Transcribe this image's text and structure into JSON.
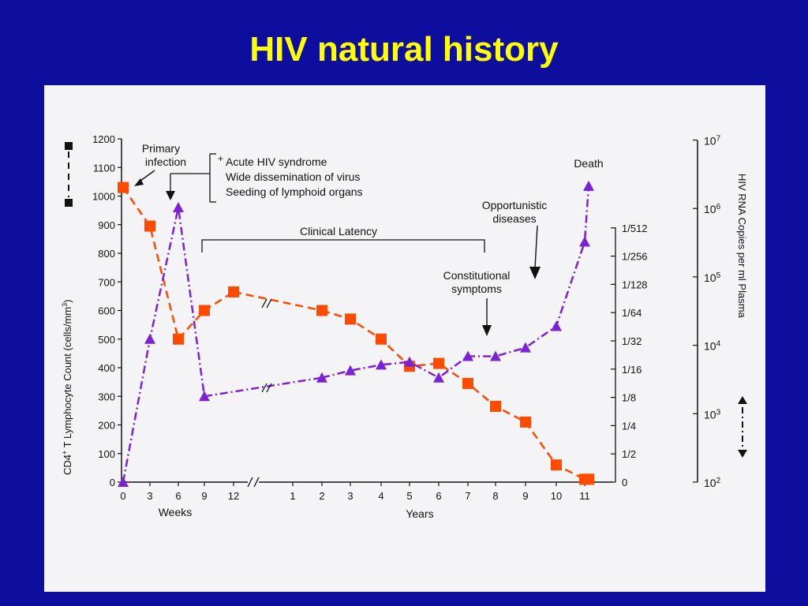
{
  "title": "HIV natural history",
  "chart_data": {
    "type": "line",
    "left_axis": {
      "label_pre": "CD4",
      "label_sup": "+",
      "label_mid": " T Lymphocyte Count (cells/mm",
      "label_sup2": "3",
      "label_post": ")",
      "ticks": [
        0,
        100,
        200,
        300,
        400,
        500,
        600,
        700,
        800,
        900,
        1000,
        1100,
        1200
      ],
      "ylim": [
        0,
        1200
      ]
    },
    "inner_right_axis": {
      "ticks": [
        "0",
        "1/2",
        "1/4",
        "1/8",
        "1/16",
        "1/32",
        "1/64",
        "1/128",
        "1/256",
        "1/512"
      ]
    },
    "outer_right_axis": {
      "label": "HIV RNA Copies per ml Plasma",
      "ticks": [
        {
          "base": "10",
          "exp": "2"
        },
        {
          "base": "10",
          "exp": "3"
        },
        {
          "base": "10",
          "exp": "4"
        },
        {
          "base": "10",
          "exp": "5"
        },
        {
          "base": "10",
          "exp": "6"
        },
        {
          "base": "10",
          "exp": "7"
        }
      ]
    },
    "x_weeks": {
      "label": "Weeks",
      "ticks": [
        "0",
        "3",
        "6",
        "9",
        "12"
      ]
    },
    "x_years": {
      "label": "Years",
      "ticks": [
        "1",
        "2",
        "3",
        "4",
        "5",
        "6",
        "7",
        "8",
        "9",
        "10",
        "11"
      ]
    },
    "series": [
      {
        "legend_marker": "square",
        "color": "#ff4a00",
        "style": "dashed",
        "points": [
          {
            "x": "0w",
            "y": 1030
          },
          {
            "x": "3w",
            "y": 895
          },
          {
            "x": "6w",
            "y": 500
          },
          {
            "x": "9w",
            "y": 600
          },
          {
            "x": "12w",
            "y": 665
          },
          {
            "x": "2y",
            "y": 600
          },
          {
            "x": "3y",
            "y": 570
          },
          {
            "x": "4y",
            "y": 500
          },
          {
            "x": "5y",
            "y": 405
          },
          {
            "x": "6y",
            "y": 415
          },
          {
            "x": "7y",
            "y": 345
          },
          {
            "x": "8y",
            "y": 265
          },
          {
            "x": "9y",
            "y": 210
          },
          {
            "x": "10y",
            "y": 60
          },
          {
            "x": "11y",
            "y": 10
          },
          {
            "x": "12y",
            "y": 10
          }
        ]
      },
      {
        "legend_marker": "triangle",
        "color": "#7b22d4",
        "style": "dash-dot",
        "points": [
          {
            "x": "0w",
            "y": 0
          },
          {
            "x": "3w",
            "y": 500
          },
          {
            "x": "6w",
            "y": 960
          },
          {
            "x": "9w",
            "y": 300
          },
          {
            "x": "2y",
            "y": 365
          },
          {
            "x": "3y",
            "y": 390
          },
          {
            "x": "4y",
            "y": 410
          },
          {
            "x": "5y",
            "y": 420
          },
          {
            "x": "6y",
            "y": 365
          },
          {
            "x": "7y",
            "y": 440
          },
          {
            "x": "8y",
            "y": 440
          },
          {
            "x": "9y",
            "y": 470
          },
          {
            "x": "10y",
            "y": 545
          },
          {
            "x": "11y",
            "y": 840
          },
          {
            "x": "12y",
            "y": 1035
          }
        ]
      }
    ],
    "annotations": {
      "primary_infection": "Primary\ninfection",
      "acute_lines": [
        "Acute HIV syndrome",
        "Wide dissemination of virus",
        "Seeding of lymphoid organs"
      ],
      "acute_marker": "+",
      "clinical_latency": "Clinical Latency",
      "constitutional": "Constitutional\nsymptoms",
      "opportunistic": "Opportunistic\ndiseases",
      "death": "Death"
    }
  }
}
